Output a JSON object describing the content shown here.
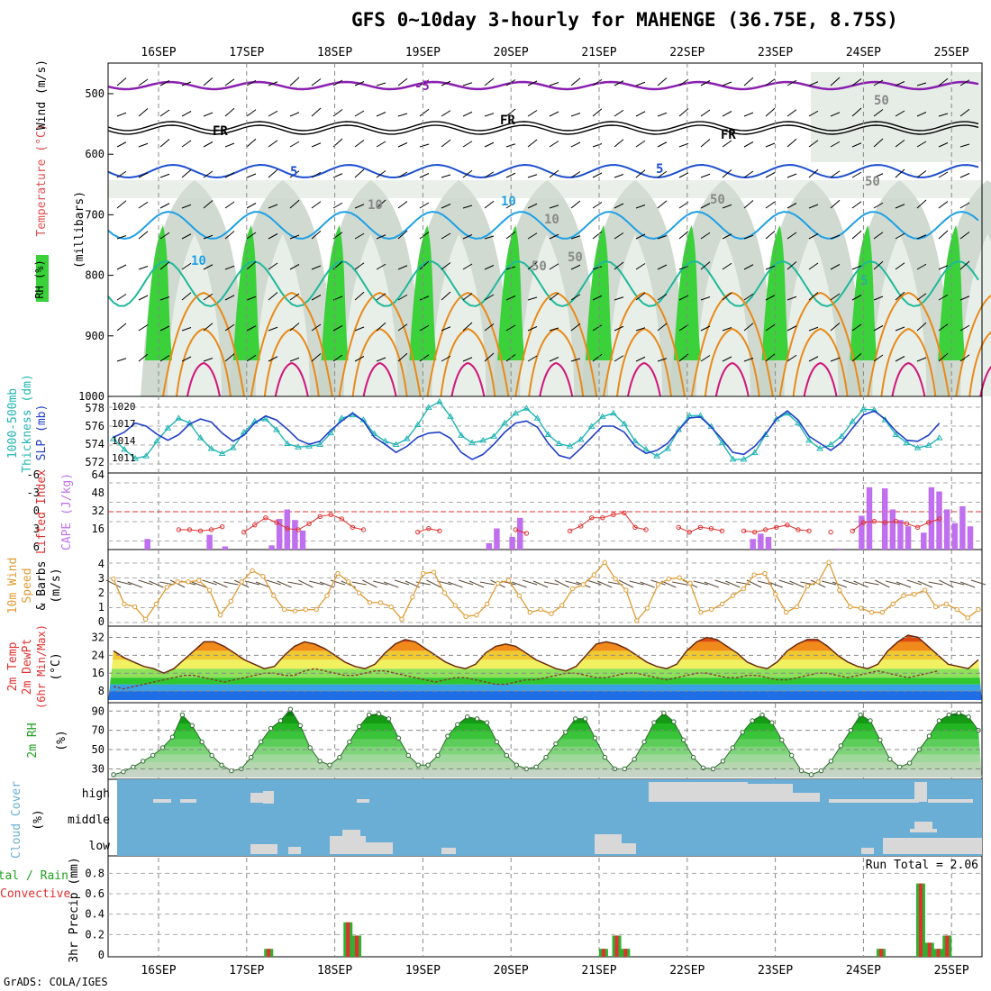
{
  "header": {
    "title": "GFS 0~10day 3-hourly for MAHENGE (36.75E, 8.75S)",
    "credit": "GrADS: COLA/IGES"
  },
  "dates": [
    "16SEP",
    "17SEP",
    "18SEP",
    "19SEP",
    "20SEP",
    "21SEP",
    "22SEP",
    "23SEP",
    "24SEP",
    "25SEP"
  ],
  "colors": {
    "temp_purple": "#8a1fb0",
    "temp_black": "#000000",
    "temp_blue": "#1e4fd0",
    "temp_lightblue": "#1ea0e6",
    "temp_teal": "#1fb89a",
    "temp_orange": "#e88a1a",
    "temp_magenta": "#d0187a",
    "rh_green": "#3ad13a",
    "rh_light": "#dbe7db",
    "thickness": "#22b4b4",
    "slp": "#1e3ec8",
    "cape": "#c070ee",
    "lifted": "#e03030",
    "wind": "#e09a30",
    "cloud_bg": "#6aaed6",
    "cloud_fill": "#d8d8d8",
    "precip_total": "#30b030",
    "precip_conv": "#e03030"
  },
  "panel_labels": {
    "upper": {
      "rh": "RH (%)",
      "temp": "Temperature (°C)",
      "wind": "Wind (m/s)",
      "units": "(millibars)",
      "ticks": [
        "500",
        "600",
        "700",
        "800",
        "900",
        "1000"
      ]
    },
    "slp": {
      "thick1": "1000-500mb",
      "thick2": "Thickness (dm)",
      "slp": "SLP (mb)",
      "left_ticks": [
        "578",
        "576",
        "574",
        "572"
      ],
      "right_ticks": [
        "1020",
        "1017",
        "1014",
        "1011"
      ]
    },
    "cape": {
      "li": "Lifted Index",
      "cape": "CAPE (J/kg)",
      "left_ticks": [
        "-6",
        "-3",
        "0",
        "3",
        "6"
      ],
      "right_ticks": [
        "64",
        "48",
        "32",
        "16"
      ]
    },
    "wind10": {
      "l1": "10m Wind",
      "l2": "Speed",
      "l3": "& Barbs",
      "l4": "(m/s)",
      "ticks": [
        "4",
        "3",
        "2",
        "1",
        "0"
      ]
    },
    "temp2m": {
      "l1": "2m Temp",
      "l2": "2m DewPt",
      "l3": "(6hr Min/Max)",
      "l4": "(°C)",
      "ticks": [
        "32",
        "24",
        "16",
        "8"
      ]
    },
    "rh2m": {
      "l1": "2m RH",
      "l2": "(%)",
      "ticks": [
        "90",
        "70",
        "50",
        "30"
      ]
    },
    "cloud": {
      "l1": "Cloud Cover",
      "l2": "(%)",
      "high": "high",
      "middle": "middle",
      "low": "low"
    },
    "precip": {
      "l1": "Total / Rain",
      "l2": "Convective",
      "l3": "3hr Precip (mm)",
      "ticks": [
        "0.8",
        "0.6",
        "0.4",
        "0.2",
        "0"
      ],
      "run_total": "Run Total = 2.06"
    }
  },
  "contour_labels": [
    "-5",
    "FR",
    "FR",
    "FR",
    "5",
    "5",
    "10",
    "10",
    "10",
    "10",
    "50",
    "50",
    "50",
    "50",
    "50",
    "5"
  ],
  "chart_data": [
    {
      "type": "line",
      "name": "1000-500mb Thickness (dm)",
      "ylim": [
        571,
        579
      ],
      "x": [
        0,
        0.125,
        0.25,
        0.375,
        0.5,
        0.625,
        0.75,
        0.875,
        1,
        1.125,
        1.25,
        1.375,
        1.5,
        1.625,
        1.75,
        1.875,
        2,
        2.125,
        2.25,
        2.375,
        2.5,
        2.625,
        2.75,
        2.875,
        3,
        3.125,
        3.25,
        3.375,
        3.5,
        3.625,
        3.75,
        3.875,
        4,
        4.125,
        4.25,
        4.375,
        4.5,
        4.625,
        4.75,
        4.875,
        5,
        5.125,
        5.25,
        5.375,
        5.5,
        5.625,
        5.75,
        5.875,
        6,
        6.125,
        6.25,
        6.375,
        6.5,
        6.625,
        6.75,
        6.875,
        7,
        7.125,
        7.25,
        7.375,
        7.5,
        7.625,
        7.75,
        7.875,
        8,
        8.125,
        8.25,
        8.375,
        8.5,
        8.625,
        8.75,
        8.875,
        9,
        9.125,
        9.25,
        9.375,
        9.5
      ],
      "values": [
        574.5,
        573.2,
        572.1,
        572.4,
        574.2,
        575.8,
        577.0,
        576.4,
        574.6,
        573.3,
        572.7,
        573.4,
        575.3,
        576.6,
        576.9,
        575.6,
        573.9,
        573.5,
        573.6,
        573.8,
        575.2,
        577.0,
        577.4,
        576.8,
        575.1,
        574.2,
        573.8,
        574.5,
        576.2,
        578.3,
        579.0,
        577.2,
        574.9,
        574.0,
        574.3,
        574.8,
        576.4,
        577.6,
        578.2,
        577.0,
        575.0,
        573.9,
        573.6,
        574.4,
        576.0,
        577.2,
        577.6,
        576.3,
        574.2,
        573.2,
        572.4,
        573.3,
        575.6,
        577.3,
        577.3,
        576.0,
        574.0,
        572.0,
        572.0,
        572.8,
        575.0,
        576.9,
        577.6,
        576.4,
        574.3,
        573.3,
        573.8,
        574.8,
        576.6,
        578.1,
        578.0,
        576.8,
        575.0,
        574.0,
        573.4,
        573.7,
        574.6
      ]
    },
    {
      "type": "line",
      "name": "SLP (mb)",
      "ylim": [
        1009,
        1022
      ],
      "values": [
        1015.0,
        1016.0,
        1017.8,
        1017.2,
        1015.6,
        1014.4,
        1015.5,
        1017.6,
        1018.6,
        1018.0,
        1015.8,
        1014.2,
        1015.4,
        1017.8,
        1019.2,
        1018.4,
        1016.6,
        1014.5,
        1013.6,
        1014.2,
        1016.4,
        1018.2,
        1019.8,
        1018.2,
        1015.0,
        1013.6,
        1012.0,
        1013.2,
        1015.0,
        1015.8,
        1016.0,
        1014.8,
        1012.0,
        1010.6,
        1011.6,
        1013.6,
        1016.0,
        1017.8,
        1018.2,
        1017.0,
        1013.8,
        1011.4,
        1010.8,
        1012.8,
        1015.0,
        1017.2,
        1017.2,
        1016.0,
        1013.2,
        1011.8,
        1012.4,
        1013.8,
        1016.4,
        1018.8,
        1019.0,
        1017.0,
        1014.6,
        1012.0,
        1011.6,
        1013.2,
        1015.6,
        1018.6,
        1020.2,
        1018.4,
        1015.2,
        1013.8,
        1012.4,
        1014.0,
        1016.8,
        1019.4,
        1020.2,
        1018.6,
        1016.2,
        1014.4,
        1014.2,
        1015.4,
        1017.8
      ]
    },
    {
      "type": "line",
      "name": "Lifted Index",
      "ylim": [
        6,
        -6
      ],
      "values": [
        null,
        null,
        null,
        null,
        null,
        null,
        3.0,
        3.0,
        3.2,
        3.0,
        2.5,
        null,
        3.4,
        2.2,
        1.0,
        1.8,
        2.8,
        3.0,
        2.0,
        0.8,
        0.5,
        1.2,
        2.6,
        3.0,
        null,
        null,
        null,
        null,
        3.4,
        2.8,
        3.2,
        null,
        null,
        null,
        null,
        null,
        null,
        3.0,
        3.6,
        null,
        null,
        null,
        3.2,
        2.4,
        1.0,
        1.0,
        0.5,
        0.2,
        2.6,
        3.0,
        null,
        null,
        2.6,
        3.4,
        2.6,
        2.8,
        3.2,
        null,
        3.2,
        3.4,
        3.0,
        2.6,
        2.2,
        3.0,
        3.2,
        null,
        3.4,
        null,
        3.2,
        1.8,
        1.6,
        1.8,
        1.6,
        2.0,
        2.6,
        1.8,
        1.2
      ]
    },
    {
      "type": "bar",
      "name": "CAPE (J/kg)",
      "ylim": [
        0,
        64
      ],
      "values": [
        0,
        0,
        0,
        0,
        10,
        0,
        0,
        0,
        0,
        0,
        0,
        0,
        14,
        0,
        3,
        0,
        0,
        0,
        0,
        0,
        4,
        29,
        38,
        28,
        18,
        0,
        0,
        0,
        0,
        0,
        0,
        0,
        0,
        0,
        0,
        0,
        0,
        0,
        0,
        0,
        0,
        0,
        0,
        0,
        0,
        0,
        0,
        0,
        6,
        20,
        0,
        12,
        30,
        0,
        0,
        0,
        0,
        0,
        0,
        0,
        0,
        0,
        0,
        0,
        0,
        0,
        0,
        0,
        0,
        0,
        0,
        0,
        0,
        0,
        0,
        0,
        0,
        0,
        0,
        0,
        0,
        0,
        10,
        15,
        12,
        0,
        0,
        0,
        0,
        0,
        0,
        0,
        0,
        1,
        0,
        0,
        32,
        59,
        0,
        58,
        38,
        28,
        22,
        0,
        16,
        59,
        55,
        38,
        25,
        41,
        22
      ],
      "note_x": "bars every 3 hours starting at index 0"
    },
    {
      "type": "line",
      "name": "10m Wind Speed (m/s)",
      "ylim": [
        0,
        5
      ],
      "values": [
        3.2,
        1.4,
        1.2,
        0.3,
        1.4,
        2.6,
        3.0,
        3.0,
        3.1,
        2.4,
        0.6,
        1.6,
        3.0,
        3.8,
        3.4,
        2.0,
        1.0,
        0.9,
        1.0,
        1.0,
        2.0,
        3.6,
        3.0,
        2.2,
        1.5,
        1.5,
        1.2,
        0.3,
        1.9,
        3.6,
        3.7,
        2.2,
        1.3,
        0.5,
        0.6,
        1.4,
        2.9,
        3.1,
        2.0,
        0.8,
        1.0,
        0.7,
        1.3,
        2.5,
        2.8,
        3.5,
        4.4,
        3.2,
        2.4,
        0.2,
        1.1,
        2.8,
        3.2,
        3.3,
        2.9,
        0.8,
        1.0,
        1.4,
        2.0,
        2.5,
        3.5,
        3.6,
        2.1,
        0.8,
        1.2,
        2.7,
        3.0,
        4.4,
        2.4,
        1.2,
        1.1,
        0.8,
        0.8,
        1.4,
        2.0,
        2.1,
        2.4,
        1.2,
        1.4,
        1.0,
        0.4,
        1.0
      ]
    },
    {
      "type": "area",
      "name": "2m Temp (°C)",
      "ylim": [
        4,
        35
      ],
      "values": [
        26,
        23,
        21,
        19,
        18,
        16,
        18,
        22,
        26,
        30,
        30,
        28,
        25,
        22,
        20,
        18,
        19,
        24,
        28,
        30,
        29,
        27,
        24,
        21,
        19,
        18,
        20,
        25,
        29,
        31,
        30,
        27,
        24,
        21,
        19,
        18,
        20,
        25,
        28,
        29,
        28,
        25,
        22,
        20,
        18,
        17,
        19,
        24,
        29,
        30,
        29,
        27,
        24,
        21,
        19,
        18,
        20,
        26,
        30,
        32,
        31,
        28,
        25,
        21,
        19,
        18,
        21,
        26,
        29,
        31,
        31,
        28,
        24,
        21,
        19,
        18,
        20,
        26,
        30,
        33,
        32,
        28,
        24,
        20,
        19,
        18,
        22
      ]
    },
    {
      "type": "line",
      "name": "2m DewPt (°C)",
      "values": [
        10,
        9,
        10,
        11,
        12,
        13,
        14,
        15,
        15,
        14,
        13,
        12,
        13,
        14,
        15,
        16,
        16,
        15,
        15,
        17,
        18,
        17,
        16,
        15,
        15,
        16,
        17,
        17,
        16,
        15,
        14,
        13,
        12,
        13,
        14,
        14,
        13,
        12,
        11,
        11,
        12,
        13,
        13,
        14,
        15,
        16,
        16,
        15,
        14,
        14,
        15,
        16,
        16,
        15,
        14,
        13,
        14,
        15,
        16,
        16,
        15,
        14,
        14,
        15,
        15,
        14,
        13,
        13,
        14,
        15,
        16,
        16,
        15,
        14,
        15,
        16,
        17,
        16,
        15,
        14,
        15,
        16,
        17
      ]
    },
    {
      "type": "area",
      "name": "2m RH (%)",
      "ylim": [
        22,
        94
      ],
      "values": [
        24,
        27,
        32,
        38,
        44,
        52,
        63,
        86,
        75,
        58,
        44,
        34,
        28,
        30,
        42,
        58,
        72,
        80,
        92,
        75,
        52,
        38,
        34,
        42,
        58,
        74,
        86,
        87,
        82,
        62,
        44,
        34,
        34,
        44,
        64,
        76,
        84,
        82,
        78,
        58,
        44,
        34,
        30,
        32,
        42,
        56,
        68,
        82,
        82,
        62,
        42,
        30,
        30,
        40,
        58,
        78,
        88,
        79,
        60,
        42,
        31,
        30,
        38,
        52,
        68,
        80,
        86,
        78,
        60,
        44,
        28,
        24,
        28,
        38,
        54,
        70,
        86,
        80,
        60,
        40,
        32,
        36,
        50,
        64,
        80,
        86,
        88,
        84,
        70
      ]
    },
    {
      "type": "bar",
      "name": "3hr Precip (mm)",
      "ylim": [
        0,
        0.9
      ],
      "series": [
        {
          "name": "Total",
          "values": [
            0.06,
            0.32,
            0.19,
            0.06,
            0.19,
            0.06,
            0.06,
            0.7,
            0.12,
            0.06,
            0.19
          ]
        },
        {
          "name": "Convective",
          "values": [
            0.06,
            0.32,
            0.19,
            0.06,
            0.19,
            0.06,
            0.06,
            0.7,
            0.12,
            0.06,
            0.19
          ]
        }
      ],
      "days": [
        1.25,
        2.15,
        2.25,
        5.05,
        5.2,
        5.3,
        8.2,
        8.65,
        8.75,
        8.85,
        8.95
      ]
    }
  ]
}
